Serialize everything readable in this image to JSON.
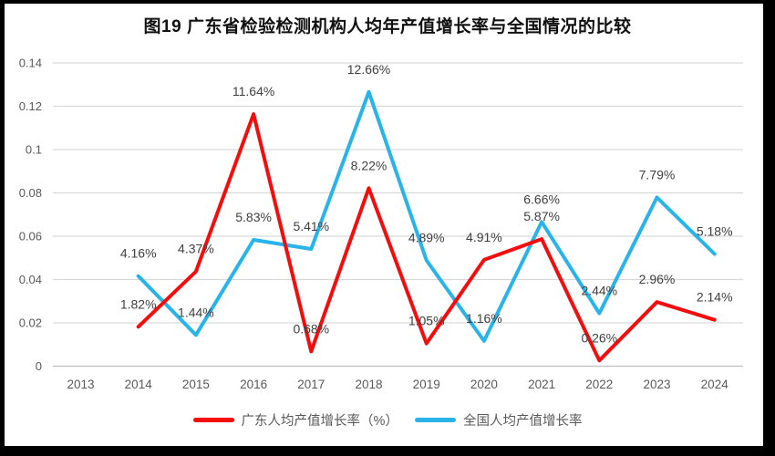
{
  "title": "图19  广东省检验检测机构人均年产值增长率与全国情况的比较",
  "chart_data": {
    "type": "line",
    "title": "图19  广东省检验检测机构人均年产值增长率与全国情况的比较",
    "categories": [
      "2013",
      "2014",
      "2015",
      "2016",
      "2017",
      "2018",
      "2019",
      "2020",
      "2021",
      "2022",
      "2023",
      "2024"
    ],
    "xlabel": "",
    "ylabel": "",
    "ylim": [
      0,
      0.14
    ],
    "yticks": [
      0,
      0.02,
      0.04,
      0.06,
      0.08,
      0.1,
      0.12,
      0.14
    ],
    "ytick_labels": [
      "0",
      "0.02",
      "0.04",
      "0.06",
      "0.08",
      "0.1",
      "0.12",
      "0.14"
    ],
    "grid": true,
    "legend_position": "bottom",
    "series": [
      {
        "id": "national",
        "name": "全国人均产值增长率",
        "color": "#29b4e9",
        "first_category_index": 1,
        "values": [
          0.0416,
          0.0144,
          0.0583,
          0.0541,
          0.1266,
          0.0489,
          0.0116,
          0.0666,
          0.0244,
          0.0779,
          0.0518
        ],
        "labels": [
          "4.16%",
          "1.44%",
          "5.83%",
          "5.41%",
          "12.66%",
          "4.89%",
          "1.16%",
          "6.66%",
          "2.44%",
          "7.79%",
          "5.18%"
        ]
      },
      {
        "id": "guangdong",
        "name": "广东人均产值增长率（%）",
        "color": "#f50d0d",
        "first_category_index": 1,
        "values": [
          0.0182,
          0.0437,
          0.1164,
          0.0068,
          0.0822,
          0.0105,
          0.0491,
          0.0587,
          0.0026,
          0.0296,
          0.0214
        ],
        "labels": [
          "1.82%",
          "4.37%",
          "11.64%",
          "0.68%",
          "8.22%",
          "1.05%",
          "4.91%",
          "5.87%",
          "0.26%",
          "2.96%",
          "2.14%"
        ]
      }
    ],
    "colors": {
      "gridline": "#d9d9d9",
      "zero_line": "#c0c0c0",
      "axis_text": "#595959",
      "data_label_text": "#3f3f3f",
      "frame": "#000000"
    }
  },
  "legend": {
    "items": [
      {
        "label": "广东人均产值增长率（%）",
        "series_id": "guangdong"
      },
      {
        "label": "全国人均产值增长率",
        "series_id": "national"
      }
    ]
  }
}
